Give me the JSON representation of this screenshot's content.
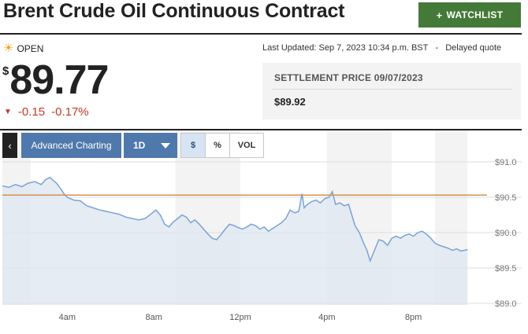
{
  "header": {
    "title": "Brent Crude Oil Continuous Contract",
    "watchlist_label": "WATCHLIST"
  },
  "quote": {
    "status": "OPEN",
    "last_updated": "Last Updated: Sep 7, 2023 10:34 p.m. BST",
    "delayed": "Delayed quote",
    "currency_symbol": "$",
    "price": "89.77",
    "change": "-0.15",
    "change_pct": "-0.17%",
    "change_color": "#c0392b"
  },
  "settlement": {
    "label": "SETTLEMENT PRICE 09/07/2023",
    "value": "$89.92"
  },
  "toolbar": {
    "back_icon": "chevron-left-icon",
    "advanced_label": "Advanced Charting",
    "range_label": "1D",
    "options": [
      "$",
      "%",
      "VOL"
    ],
    "active_option": "$"
  },
  "chart_data": {
    "type": "area",
    "x_start_hour": 1,
    "x_end_hour": 23,
    "x_ticks": [
      {
        "hour": 4,
        "label": "4am"
      },
      {
        "hour": 8,
        "label": "8am"
      },
      {
        "hour": 12,
        "label": "12pm"
      },
      {
        "hour": 16,
        "label": "4pm"
      },
      {
        "hour": 20,
        "label": "8pm"
      }
    ],
    "y_ticks": [
      {
        "value": 89.0,
        "label": "$89.0"
      },
      {
        "value": 89.5,
        "label": "$89.5"
      },
      {
        "value": 90.0,
        "label": "$90.0"
      },
      {
        "value": 90.5,
        "label": "$90.5"
      },
      {
        "value": 91.0,
        "label": "$91.0"
      }
    ],
    "ylim": [
      89.0,
      91.0
    ],
    "reference_line": {
      "value": 90.53,
      "color": "#d4904f"
    },
    "line_color": "#7ba3d4",
    "fill_color": "#dfe7f1",
    "shade_bands": [
      [
        1,
        2.3
      ],
      [
        9,
        12
      ],
      [
        16,
        19
      ],
      [
        21,
        22.5
      ]
    ],
    "points": [
      [
        1.0,
        90.66
      ],
      [
        1.3,
        90.64
      ],
      [
        1.6,
        90.68
      ],
      [
        1.9,
        90.65
      ],
      [
        2.2,
        90.7
      ],
      [
        2.5,
        90.72
      ],
      [
        2.8,
        90.68
      ],
      [
        3.0,
        90.75
      ],
      [
        3.2,
        90.78
      ],
      [
        3.35,
        90.74
      ],
      [
        3.5,
        90.7
      ],
      [
        3.7,
        90.62
      ],
      [
        3.85,
        90.55
      ],
      [
        4.0,
        90.5
      ],
      [
        4.3,
        90.46
      ],
      [
        4.6,
        90.45
      ],
      [
        4.9,
        90.38
      ],
      [
        5.2,
        90.35
      ],
      [
        5.5,
        90.32
      ],
      [
        5.8,
        90.3
      ],
      [
        6.1,
        90.28
      ],
      [
        6.4,
        90.26
      ],
      [
        6.7,
        90.22
      ],
      [
        7.0,
        90.2
      ],
      [
        7.3,
        90.18
      ],
      [
        7.6,
        90.2
      ],
      [
        7.9,
        90.27
      ],
      [
        8.1,
        90.32
      ],
      [
        8.3,
        90.25
      ],
      [
        8.5,
        90.12
      ],
      [
        8.7,
        90.08
      ],
      [
        8.9,
        90.15
      ],
      [
        9.1,
        90.2
      ],
      [
        9.3,
        90.25
      ],
      [
        9.5,
        90.22
      ],
      [
        9.7,
        90.14
      ],
      [
        9.9,
        90.18
      ],
      [
        10.1,
        90.12
      ],
      [
        10.3,
        90.05
      ],
      [
        10.5,
        89.98
      ],
      [
        10.7,
        89.92
      ],
      [
        10.9,
        89.9
      ],
      [
        11.1,
        89.97
      ],
      [
        11.3,
        90.05
      ],
      [
        11.5,
        90.12
      ],
      [
        11.7,
        90.1
      ],
      [
        11.9,
        90.07
      ],
      [
        12.1,
        90.05
      ],
      [
        12.3,
        90.08
      ],
      [
        12.5,
        90.12
      ],
      [
        12.7,
        90.1
      ],
      [
        12.9,
        90.05
      ],
      [
        13.1,
        90.08
      ],
      [
        13.3,
        90.02
      ],
      [
        13.5,
        90.06
      ],
      [
        13.7,
        90.1
      ],
      [
        13.9,
        90.14
      ],
      [
        14.1,
        90.2
      ],
      [
        14.3,
        90.32
      ],
      [
        14.5,
        90.28
      ],
      [
        14.7,
        90.3
      ],
      [
        14.85,
        90.55
      ],
      [
        14.95,
        90.35
      ],
      [
        15.1,
        90.4
      ],
      [
        15.3,
        90.44
      ],
      [
        15.5,
        90.46
      ],
      [
        15.7,
        90.42
      ],
      [
        15.9,
        90.48
      ],
      [
        16.1,
        90.5
      ],
      [
        16.25,
        90.58
      ],
      [
        16.4,
        90.4
      ],
      [
        16.6,
        90.42
      ],
      [
        16.8,
        90.38
      ],
      [
        17.0,
        90.4
      ],
      [
        17.15,
        90.25
      ],
      [
        17.3,
        90.1
      ],
      [
        17.5,
        90.0
      ],
      [
        17.7,
        89.85
      ],
      [
        17.85,
        89.75
      ],
      [
        18.0,
        89.6
      ],
      [
        18.2,
        89.75
      ],
      [
        18.4,
        89.9
      ],
      [
        18.6,
        89.88
      ],
      [
        18.8,
        89.82
      ],
      [
        19.0,
        89.92
      ],
      [
        19.2,
        89.95
      ],
      [
        19.4,
        89.92
      ],
      [
        19.6,
        89.96
      ],
      [
        19.8,
        89.98
      ],
      [
        20.0,
        89.95
      ],
      [
        20.2,
        90.0
      ],
      [
        20.4,
        90.02
      ],
      [
        20.6,
        89.98
      ],
      [
        20.8,
        89.92
      ],
      [
        21.0,
        89.85
      ],
      [
        21.2,
        89.82
      ],
      [
        21.4,
        89.8
      ],
      [
        21.6,
        89.78
      ],
      [
        21.8,
        89.75
      ],
      [
        22.0,
        89.77
      ],
      [
        22.2,
        89.74
      ],
      [
        22.5,
        89.76
      ]
    ]
  },
  "colors": {
    "watchlist_green": "#447a37",
    "toolbar_blue": "#4f79ac",
    "active_option_bg": "#d8e4f2"
  }
}
